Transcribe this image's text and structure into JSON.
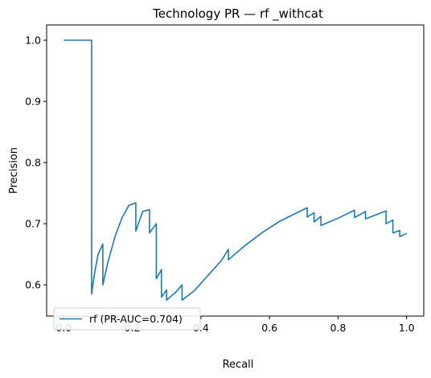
{
  "chart_data": {
    "type": "line",
    "title": "Technology PR — rf _withcat",
    "xlabel": "Recall",
    "ylabel": "Precision",
    "xlim": [
      -0.05,
      1.05
    ],
    "ylim": [
      0.549,
      1.025
    ],
    "xticks": [
      0.0,
      0.2,
      0.4,
      0.6,
      0.8,
      1.0
    ],
    "xtick_labels": [
      "0.0",
      "0.2",
      "0.4",
      "0.6",
      "0.8",
      "1.0"
    ],
    "yticks": [
      0.6,
      0.7,
      0.8,
      0.9,
      1.0
    ],
    "ytick_labels": [
      "0.6",
      "0.7",
      "0.8",
      "0.9",
      "1.0"
    ],
    "grid": false,
    "legend": {
      "position": "lower-left",
      "entries": [
        "rf (PR-AUC=0.704)"
      ]
    },
    "colors": {
      "series": "#1f77b4"
    },
    "series": [
      {
        "name": "rf (PR-AUC=0.704)",
        "x": [
          0.0,
          0.081,
          0.081,
          0.081,
          0.09,
          0.1,
          0.114,
          0.114,
          0.13,
          0.15,
          0.17,
          0.19,
          0.21,
          0.21,
          0.23,
          0.25,
          0.25,
          0.27,
          0.27,
          0.285,
          0.285,
          0.3,
          0.3,
          0.32,
          0.33,
          0.345,
          0.345,
          0.38,
          0.42,
          0.46,
          0.48,
          0.48,
          0.53,
          0.58,
          0.63,
          0.68,
          0.71,
          0.71,
          0.73,
          0.73,
          0.75,
          0.75,
          0.8,
          0.848,
          0.848,
          0.88,
          0.88,
          0.94,
          0.94,
          0.96,
          0.96,
          0.98,
          0.98,
          1.0
        ],
        "y": [
          1.0,
          1.0,
          0.6,
          0.585,
          0.62,
          0.65,
          0.667,
          0.6,
          0.64,
          0.68,
          0.71,
          0.73,
          0.734,
          0.688,
          0.72,
          0.723,
          0.685,
          0.7,
          0.61,
          0.625,
          0.58,
          0.592,
          0.575,
          0.585,
          0.59,
          0.6,
          0.575,
          0.59,
          0.615,
          0.64,
          0.658,
          0.641,
          0.665,
          0.686,
          0.704,
          0.718,
          0.726,
          0.711,
          0.718,
          0.703,
          0.712,
          0.697,
          0.709,
          0.722,
          0.71,
          0.72,
          0.708,
          0.721,
          0.7,
          0.706,
          0.685,
          0.689,
          0.679,
          0.684
        ]
      }
    ]
  }
}
